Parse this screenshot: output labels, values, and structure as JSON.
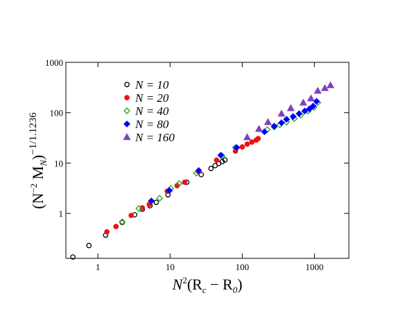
{
  "chart_data": {
    "type": "scatter",
    "x_label": [
      "N",
      "2",
      "(R",
      "c",
      " − R",
      "0",
      ")"
    ],
    "y_label": [
      "(N",
      "−2",
      " M",
      "N",
      ")",
      "−1/1.1236"
    ],
    "xlim": [
      0.36,
      3000
    ],
    "ylim": [
      0.128,
      1000
    ],
    "xticks": [
      1,
      10,
      100,
      1000
    ],
    "yticks": [
      1,
      10,
      100,
      1000
    ],
    "log_x": true,
    "log_y": true,
    "legend": "upper left",
    "series": [
      {
        "name": "N = 10",
        "color": "#000000",
        "marker": "circle",
        "filled": false,
        "x": [
          0.45,
          0.75,
          1.28,
          2.17,
          3.23,
          4.12,
          5.26,
          6.43,
          9.35,
          17,
          27,
          36.9,
          42.1,
          47.2,
          52.7,
          57.6
        ],
        "values": [
          0.136,
          0.23,
          0.37,
          0.66,
          0.94,
          1.21,
          1.42,
          1.66,
          2.35,
          4.16,
          5.9,
          7.8,
          8.9,
          9.8,
          10.7,
          11.5
        ]
      },
      {
        "name": "N = 20",
        "color": "#ee1111",
        "marker": "circle",
        "filled": true,
        "x": [
          1.33,
          1.78,
          2.89,
          4.12,
          5.14,
          9.14,
          12.5,
          15.9,
          24.9,
          44.1,
          80.4,
          100,
          117,
          136,
          156,
          166
        ],
        "values": [
          0.43,
          0.55,
          0.91,
          1.29,
          1.51,
          2.75,
          3.55,
          4.16,
          6.7,
          11.4,
          17.3,
          20.9,
          23.7,
          26.1,
          28.6,
          30.6
        ]
      },
      {
        "name": "N = 40",
        "color": "#22a022",
        "marker": "diamond",
        "filled": false,
        "x": [
          2.17,
          3.69,
          7.17,
          10.2,
          13.3,
          23.2,
          52.7,
          80.4,
          222,
          277,
          330,
          411,
          525,
          645,
          819,
          985,
          1110
        ],
        "values": [
          0.68,
          1.25,
          2.0,
          3.13,
          3.9,
          6.3,
          13.8,
          20.3,
          46,
          52,
          57.5,
          65,
          76,
          89.6,
          108,
          127,
          158
        ]
      },
      {
        "name": "N = 80",
        "color": "#0000ff",
        "marker": "diamond",
        "filled": true,
        "x": [
          5.5,
          9.8,
          24.9,
          50.4,
          83.8,
          203,
          277,
          349,
          411,
          507,
          613,
          733,
          853,
          960,
          1070
        ],
        "values": [
          1.77,
          2.84,
          7.1,
          14.3,
          20.3,
          41.8,
          54,
          63,
          74,
          84,
          95.5,
          108,
          119,
          135,
          168
        ]
      },
      {
        "name": "N = 160",
        "color": "#8040c0",
        "marker": "triangle",
        "filled": true,
        "x": [
          117,
          170,
          227,
          349,
          470,
          700,
          895,
          1110,
          1395,
          1665
        ],
        "values": [
          32.5,
          47.5,
          65,
          95.5,
          123,
          158,
          192,
          272,
          307,
          350
        ]
      }
    ]
  }
}
